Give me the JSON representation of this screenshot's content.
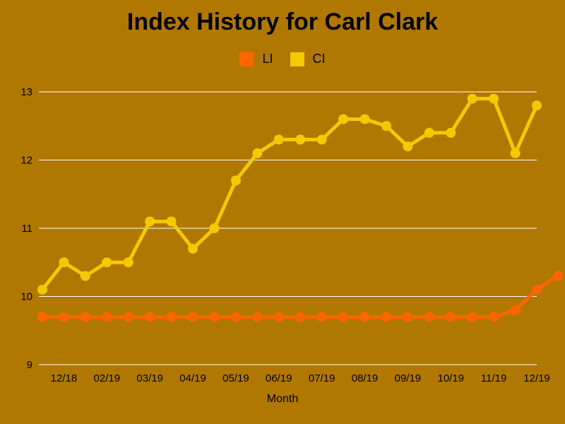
{
  "chart_data": {
    "type": "line",
    "title": "Index History for Carl Clark",
    "xlabel": "Month",
    "ylabel": "",
    "ylim": [
      9,
      13
    ],
    "y_ticks": [
      9,
      10,
      11,
      12,
      13
    ],
    "x_tick_labels": [
      "12/18",
      "02/19",
      "03/19",
      "04/19",
      "05/19",
      "06/19",
      "07/19",
      "08/19",
      "09/19",
      "10/19",
      "11/19",
      "12/19"
    ],
    "legend_position": "top-center",
    "grid": true,
    "series": [
      {
        "name": "LI",
        "color": "#ff6600",
        "values": [
          9.7,
          9.7,
          9.7,
          9.7,
          9.7,
          9.7,
          9.7,
          9.7,
          9.7,
          9.7,
          9.7,
          9.7,
          9.7,
          9.7,
          9.7,
          9.7,
          9.7,
          9.7,
          9.7,
          9.7,
          9.7,
          9.7,
          9.8,
          10.1,
          10.3
        ]
      },
      {
        "name": "CI",
        "color": "#f5c800",
        "values": [
          10.1,
          10.5,
          10.3,
          10.5,
          10.5,
          11.1,
          11.1,
          10.7,
          11.0,
          11.7,
          12.1,
          12.3,
          12.3,
          12.3,
          12.6,
          12.6,
          12.5,
          12.2,
          12.4,
          12.4,
          12.9,
          12.9,
          12.1,
          12.8
        ]
      }
    ]
  }
}
